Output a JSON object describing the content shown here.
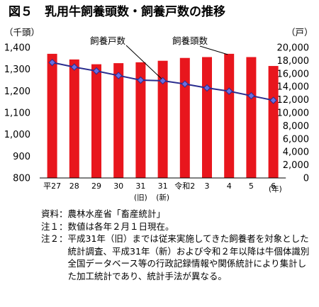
{
  "chart_data": {
    "type": "bar+line",
    "title": "図５　乳用牛飼養頭数・飼養戸数の推移",
    "categories": [
      {
        "label": "平27",
        "sub": ""
      },
      {
        "label": "28",
        "sub": ""
      },
      {
        "label": "29",
        "sub": ""
      },
      {
        "label": "30",
        "sub": ""
      },
      {
        "label": "31",
        "sub": "(旧)"
      },
      {
        "label": "31",
        "sub": "(新)"
      },
      {
        "label": "令和2",
        "sub": ""
      },
      {
        "label": "3",
        "sub": ""
      },
      {
        "label": "4",
        "sub": ""
      },
      {
        "label": "5",
        "sub": ""
      },
      {
        "label": "6",
        "sub": ""
      }
    ],
    "x_unit": "(年)",
    "y_left": {
      "unit": "（千頭）",
      "min": 800,
      "max": 1400,
      "ticks": [
        "800",
        "900",
        "1,000",
        "1,100",
        "1,200",
        "1,300",
        "1,400"
      ]
    },
    "y_right": {
      "unit": "（戸）",
      "min": 0,
      "max": 20000,
      "ticks": [
        "0",
        "2,000",
        "4,000",
        "6,000",
        "8,000",
        "10,000",
        "12,000",
        "14,000",
        "16,000",
        "18,000",
        "20,000"
      ]
    },
    "series": [
      {
        "name": "飼養頭数",
        "type": "bar",
        "axis": "left",
        "color": "#e8161d",
        "values": [
          1371,
          1345,
          1323,
          1328,
          1332,
          1339,
          1352,
          1356,
          1371,
          1356,
          1315
        ]
      },
      {
        "name": "飼養戸数",
        "type": "line",
        "axis": "right",
        "color": "#2b2d8f",
        "values": [
          17700,
          17000,
          16400,
          15700,
          15000,
          14900,
          14400,
          13800,
          13300,
          12600,
          11900
        ]
      }
    ],
    "grid": false
  },
  "notes": [
    {
      "label": "資料：",
      "text": "農林水産省「畜産統計」"
    },
    {
      "label": "注１：",
      "text": "数値は各年２月１日現在。"
    },
    {
      "label": "注２：",
      "text": "平成31年（旧）までは従来実施してきた飼養者を対象とした統計調査、平成31年（新）および令和２年以降は牛個体識別全国データベース等の行政記録情報や関係統計により集計した加工統計であり、統計手法が異なる。"
    }
  ]
}
